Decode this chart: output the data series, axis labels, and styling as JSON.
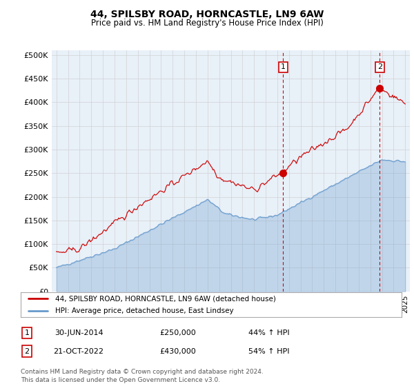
{
  "title": "44, SPILSBY ROAD, HORNCASTLE, LN9 6AW",
  "subtitle": "Price paid vs. HM Land Registry's House Price Index (HPI)",
  "ylabel_ticks": [
    "£0",
    "£50K",
    "£100K",
    "£150K",
    "£200K",
    "£250K",
    "£300K",
    "£350K",
    "£400K",
    "£450K",
    "£500K"
  ],
  "ytick_values": [
    0,
    50000,
    100000,
    150000,
    200000,
    250000,
    300000,
    350000,
    400000,
    450000,
    500000
  ],
  "ylim": [
    0,
    510000
  ],
  "xlim_start": 1994.6,
  "xlim_end": 2025.4,
  "transaction1": {
    "date_num": 2014.5,
    "price": 250000,
    "label": "1"
  },
  "transaction2": {
    "date_num": 2022.8,
    "price": 430000,
    "label": "2"
  },
  "legend_line1": "44, SPILSBY ROAD, HORNCASTLE, LN9 6AW (detached house)",
  "legend_line2": "HPI: Average price, detached house, East Lindsey",
  "table_row1": [
    "1",
    "30-JUN-2014",
    "£250,000",
    "44% ↑ HPI"
  ],
  "table_row2": [
    "2",
    "21-OCT-2022",
    "£430,000",
    "54% ↑ HPI"
  ],
  "footnote": "Contains HM Land Registry data © Crown copyright and database right 2024.\nThis data is licensed under the Open Government Licence v3.0.",
  "line_color_red": "#cc0000",
  "line_color_blue": "#6699cc",
  "fill_color_blue": "#ddeeff",
  "dashed_line_color": "#cc0000",
  "background_color": "#ffffff",
  "grid_color": "#cccccc",
  "chart_bg": "#e8f0f8"
}
